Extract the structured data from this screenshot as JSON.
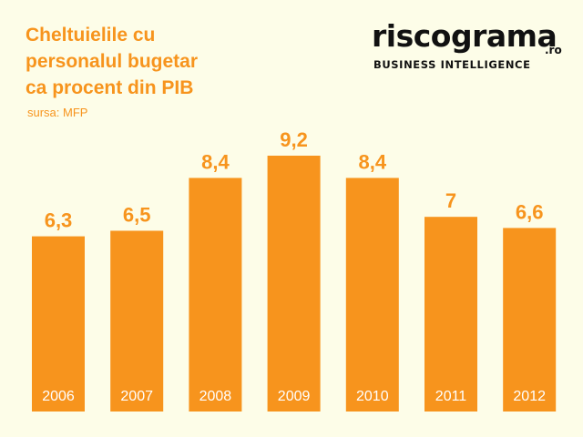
{
  "title_lines": [
    "Cheltuielile cu",
    "personalul bugetar",
    "ca procent din PIB"
  ],
  "source": "sursa: MFP",
  "logo": {
    "word": "riscograma",
    "suffix": ".ro",
    "tagline": "BUSINESS INTELLIGENCE"
  },
  "colors": {
    "bar": "#f7941d",
    "background": "#fdfde8",
    "label": "#f7941d",
    "category_text": "#ffffff"
  },
  "chart_data": {
    "type": "bar",
    "title": "Cheltuielile cu personalul bugetar ca procent din PIB",
    "categories": [
      "2006",
      "2007",
      "2008",
      "2009",
      "2010",
      "2011",
      "2012"
    ],
    "values": [
      6.3,
      6.5,
      8.4,
      9.2,
      8.4,
      7,
      6.6
    ],
    "value_labels": [
      "6,3",
      "6,5",
      "8,4",
      "9,2",
      "8,4",
      "7",
      "6,6"
    ],
    "xlabel": "",
    "ylabel": "",
    "ylim": [
      0,
      9.2
    ],
    "grid": false,
    "legend": "none"
  }
}
